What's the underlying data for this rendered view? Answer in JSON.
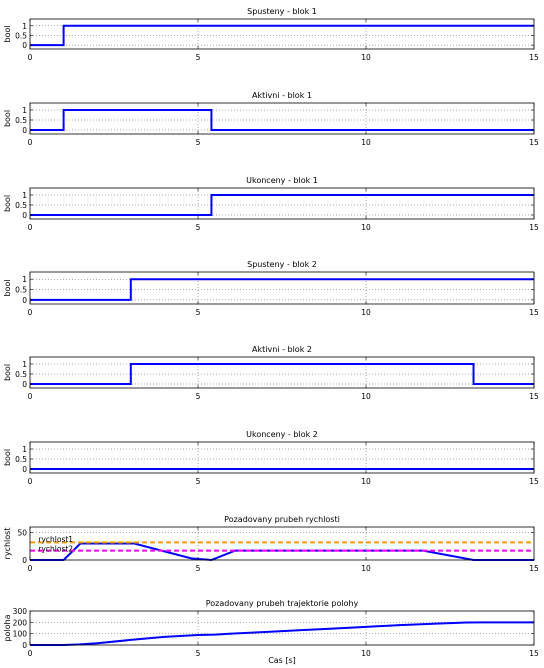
{
  "figure": {
    "xlabel": "Cas [s]"
  },
  "chart_data": [
    {
      "type": "line",
      "title": "Spusteny - blok 1",
      "ylabel": "bool",
      "xlim": [
        0,
        15
      ],
      "ylim": [
        -0.2,
        1.35
      ],
      "xticks": [
        0,
        5,
        10,
        15
      ],
      "yticks": [
        0,
        0.5,
        1
      ],
      "ytick_labels": [
        "0",
        "0.5",
        "1"
      ],
      "grid": true,
      "series": [
        {
          "color": "#0000ff",
          "x": [
            0,
            1,
            1,
            15
          ],
          "y": [
            0,
            0,
            1,
            1
          ]
        }
      ]
    },
    {
      "type": "line",
      "title": "Aktivni - blok 1",
      "ylabel": "bool",
      "xlim": [
        0,
        15
      ],
      "ylim": [
        -0.2,
        1.35
      ],
      "xticks": [
        0,
        5,
        10,
        15
      ],
      "yticks": [
        0,
        0.5,
        1
      ],
      "ytick_labels": [
        "0",
        "0.5",
        "1"
      ],
      "grid": true,
      "series": [
        {
          "color": "#0000ff",
          "x": [
            0,
            1,
            1,
            5.4,
            5.4,
            15
          ],
          "y": [
            0,
            0,
            1,
            1,
            0,
            0
          ]
        }
      ]
    },
    {
      "type": "line",
      "title": "Ukonceny - blok 1",
      "ylabel": "bool",
      "xlim": [
        0,
        15
      ],
      "ylim": [
        -0.2,
        1.35
      ],
      "xticks": [
        0,
        5,
        10,
        15
      ],
      "yticks": [
        0,
        0.5,
        1
      ],
      "ytick_labels": [
        "0",
        "0.5",
        "1"
      ],
      "grid": true,
      "series": [
        {
          "color": "#0000ff",
          "x": [
            0,
            5.4,
            5.4,
            15
          ],
          "y": [
            0,
            0,
            1,
            1
          ]
        }
      ]
    },
    {
      "type": "line",
      "title": "Spusteny - blok 2",
      "ylabel": "bool",
      "xlim": [
        0,
        15
      ],
      "ylim": [
        -0.2,
        1.35
      ],
      "xticks": [
        0,
        5,
        10,
        15
      ],
      "yticks": [
        0,
        0.5,
        1
      ],
      "ytick_labels": [
        "0",
        "0.5",
        "1"
      ],
      "grid": true,
      "series": [
        {
          "color": "#0000ff",
          "x": [
            0,
            3,
            3,
            15
          ],
          "y": [
            0,
            0,
            1,
            1
          ]
        }
      ]
    },
    {
      "type": "line",
      "title": "Aktivni - blok 2",
      "ylabel": "bool",
      "xlim": [
        0,
        15
      ],
      "ylim": [
        -0.2,
        1.35
      ],
      "xticks": [
        0,
        5,
        10,
        15
      ],
      "yticks": [
        0,
        0.5,
        1
      ],
      "ytick_labels": [
        "0",
        "0.5",
        "1"
      ],
      "grid": true,
      "series": [
        {
          "color": "#0000ff",
          "x": [
            0,
            3,
            3,
            13.2,
            13.2,
            15
          ],
          "y": [
            0,
            0,
            1,
            1,
            0,
            0
          ]
        }
      ]
    },
    {
      "type": "line",
      "title": "Ukonceny - blok 2",
      "ylabel": "bool",
      "xlim": [
        0,
        15
      ],
      "ylim": [
        -0.2,
        1.35
      ],
      "xticks": [
        0,
        5,
        10,
        15
      ],
      "yticks": [
        0,
        0.5,
        1
      ],
      "ytick_labels": [
        "0",
        "0.5",
        "1"
      ],
      "grid": true,
      "series": [
        {
          "color": "#0000ff",
          "x": [
            0,
            15
          ],
          "y": [
            0,
            0
          ]
        }
      ]
    },
    {
      "type": "line",
      "title": "Pozadovany prubeh rychlosti",
      "ylabel": "rychlost",
      "xlim": [
        0,
        15
      ],
      "ylim": [
        0,
        60
      ],
      "xticks": [
        0,
        5,
        10,
        15
      ],
      "yticks": [
        0,
        50
      ],
      "ytick_labels": [
        "0",
        "50"
      ],
      "grid": true,
      "series": [
        {
          "color": "#0000ff",
          "x": [
            0,
            1,
            1.5,
            3.1,
            4.8,
            5.4,
            6.1,
            11.7,
            13.2,
            15
          ],
          "y": [
            0,
            0,
            30,
            30,
            3,
            0,
            17,
            17,
            0,
            0
          ]
        },
        {
          "color": "#ff9900",
          "dashed": true,
          "x": [
            0,
            15
          ],
          "y": [
            32,
            32
          ]
        },
        {
          "color": "#ff00ff",
          "dashed": true,
          "x": [
            0,
            15
          ],
          "y": [
            17,
            17
          ]
        }
      ],
      "annotations": [
        {
          "text": "rychlost1",
          "x": 0.25,
          "y": 38
        },
        {
          "text": "rychlost2",
          "x": 0.25,
          "y": 21
        }
      ]
    },
    {
      "type": "line",
      "title": "Pozadovany prubeh trajektorie polohy",
      "ylabel": "poloha",
      "xlim": [
        0,
        15
      ],
      "ylim": [
        0,
        300
      ],
      "xticks": [
        0,
        5,
        10,
        15
      ],
      "yticks": [
        0,
        100,
        200,
        300
      ],
      "ytick_labels": [
        "0",
        "100",
        "200",
        "300"
      ],
      "grid": true,
      "series": [
        {
          "color": "#0000ff",
          "x": [
            0,
            1,
            1.5,
            2,
            3,
            4,
            5,
            5.5,
            6,
            7,
            8,
            9,
            10,
            11,
            12,
            13,
            13.5,
            15
          ],
          "y": [
            0,
            0,
            5,
            15,
            45,
            72,
            88,
            92,
            100,
            115,
            130,
            145,
            160,
            175,
            188,
            198,
            200,
            200
          ]
        }
      ]
    }
  ]
}
